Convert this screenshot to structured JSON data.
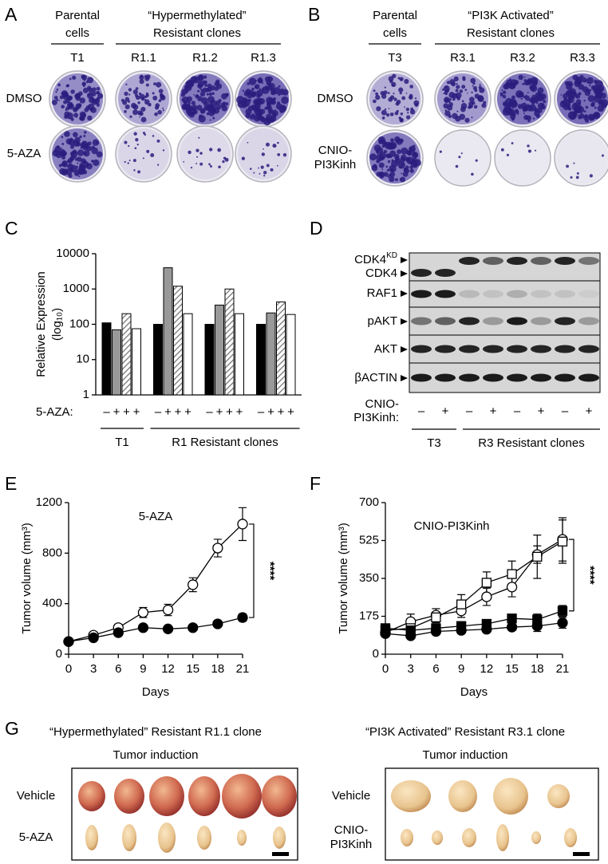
{
  "panel_labels": [
    "A",
    "B",
    "C",
    "D",
    "E",
    "F",
    "G"
  ],
  "panel_a": {
    "parental": [
      "Parental",
      "cells"
    ],
    "resistant": [
      "“Hypermethylated”",
      "Resistant clones"
    ],
    "columns": [
      "T1",
      "R1.1",
      "R1.2",
      "R1.3"
    ],
    "rows": [
      [
        "DMSO"
      ],
      [
        "5-AZA"
      ]
    ]
  },
  "panel_b": {
    "parental": [
      "Parental",
      "cells"
    ],
    "resistant": [
      "“PI3K Activated”",
      "Resistant clones"
    ],
    "columns": [
      "T3",
      "R3.1",
      "R3.2",
      "R3.3"
    ],
    "rows": [
      [
        "DMSO"
      ],
      [
        "CNIO-",
        "PI3Kinh"
      ]
    ]
  },
  "panel_d": {
    "bands": [
      {
        "label": "CDK4",
        "superscript": "KD"
      },
      {
        "label": "CDK4"
      },
      {
        "label": "RAF1"
      },
      {
        "label": "pAKT"
      },
      {
        "label": "AKT"
      },
      {
        "label": "βACTIN"
      }
    ],
    "treatment": [
      "CNIO-",
      "PI3Kinh:"
    ],
    "signs": [
      "–",
      "+",
      "–",
      "+",
      "–",
      "+",
      "–",
      "+"
    ],
    "groups": [
      "T3",
      "R3 Resistant clones"
    ]
  },
  "panel_g": [
    {
      "title": [
        "“Hypermethylated” Resistant R1.1 clone",
        "Tumor induction"
      ],
      "rows": [
        [
          "Vehicle"
        ],
        [
          "5-AZA"
        ]
      ]
    },
    {
      "title": [
        "“PI3K Activated” Resistant R3.1 clone",
        "Tumor induction"
      ],
      "rows": [
        [
          "Vehicle"
        ],
        [
          "CNIO-",
          "PI3Kinh"
        ]
      ]
    }
  ],
  "chart_data": [
    {
      "type": "bar",
      "log_y": true,
      "ylabel": [
        "Relative Expression",
        "(log₁₀)"
      ],
      "ylim": [
        1,
        10000
      ],
      "yticks": [
        1,
        10,
        100,
        1000,
        10000
      ],
      "categories": [
        null,
        null,
        null,
        null
      ],
      "x_prefix": "5-AZA:",
      "signs": [
        "–",
        "+",
        "+",
        "+"
      ],
      "groups": [
        "T1",
        "R1 Resistant clones"
      ],
      "series": [
        {
          "color": "#000000",
          "values": [
            110,
            100,
            100,
            100
          ]
        },
        {
          "color": "#999999",
          "values": [
            70,
            4000,
            350,
            210
          ]
        },
        {
          "color": "#ffffff",
          "hatch": true,
          "values": [
            200,
            1200,
            1000,
            430
          ]
        },
        {
          "color": "#ffffff",
          "values": [
            75,
            200,
            200,
            190
          ]
        }
      ]
    },
    {
      "type": "line",
      "annotation": "5-AZA",
      "significance": "****",
      "xlabel": "Days",
      "ylabel": "Tumor volume (mm³)",
      "x": [
        0,
        3,
        6,
        9,
        12,
        15,
        18,
        21
      ],
      "xlim": [
        0,
        21
      ],
      "xticks": [
        0,
        3,
        6,
        9,
        12,
        15,
        18,
        21
      ],
      "ylim": [
        0,
        1200
      ],
      "yticks": [
        0,
        400,
        800,
        1200
      ],
      "series": [
        {
          "color": "#000000",
          "marker": "circle",
          "marker_fill": "#ffffff",
          "values": [
            100,
            150,
            210,
            330,
            350,
            550,
            840,
            1030
          ],
          "errors": [
            10,
            20,
            25,
            40,
            45,
            55,
            70,
            130
          ]
        },
        {
          "color": "#000000",
          "marker": "circle",
          "marker_fill": "#000000",
          "values": [
            100,
            130,
            170,
            210,
            200,
            210,
            240,
            290
          ],
          "errors": [
            10,
            10,
            15,
            20,
            15,
            15,
            20,
            30
          ]
        }
      ]
    },
    {
      "type": "line",
      "annotation": "CNIO-PI3Kinh",
      "significance": "****",
      "xlabel": "Days",
      "ylabel": "Tumor volume (mm³)",
      "x": [
        0,
        3,
        6,
        9,
        12,
        15,
        18,
        21
      ],
      "xlim": [
        0,
        21
      ],
      "xticks": [
        0,
        3,
        6,
        9,
        12,
        15,
        18,
        21
      ],
      "ylim": [
        0,
        700
      ],
      "yticks": [
        0,
        175,
        350,
        525,
        700
      ],
      "series": [
        {
          "color": "#000000",
          "marker": "circle",
          "marker_fill": "#ffffff",
          "values": [
            100,
            150,
            180,
            200,
            265,
            310,
            460,
            530
          ],
          "errors": [
            10,
            35,
            30,
            30,
            40,
            45,
            40,
            100
          ]
        },
        {
          "color": "#000000",
          "marker": "square",
          "marker_fill": "#ffffff",
          "values": [
            110,
            120,
            170,
            230,
            330,
            370,
            450,
            520
          ],
          "errors": [
            10,
            20,
            25,
            45,
            50,
            60,
            100,
            100
          ]
        },
        {
          "color": "#000000",
          "marker": "circle",
          "marker_fill": "#000000",
          "values": [
            95,
            85,
            105,
            110,
            115,
            125,
            130,
            145
          ],
          "errors": [
            10,
            10,
            15,
            15,
            15,
            15,
            25,
            25
          ]
        },
        {
          "color": "#000000",
          "marker": "square",
          "marker_fill": "#000000",
          "values": [
            120,
            110,
            120,
            130,
            140,
            165,
            160,
            200
          ],
          "errors": [
            10,
            10,
            15,
            15,
            15,
            15,
            25,
            25
          ]
        }
      ]
    }
  ]
}
